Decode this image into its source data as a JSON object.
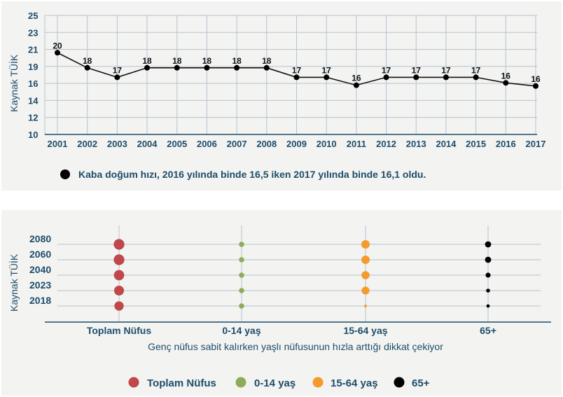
{
  "chart_data": [
    {
      "type": "line",
      "ylabel": "Kaynak TÜİK",
      "y_ticks": [
        "10",
        "12",
        "14",
        "16",
        "19",
        "21",
        "23",
        "25"
      ],
      "x": [
        "2001",
        "2002",
        "2003",
        "2004",
        "2005",
        "2006",
        "2007",
        "2008",
        "2009",
        "2010",
        "2011",
        "2012",
        "2013",
        "2014",
        "2015",
        "2016",
        "2017"
      ],
      "values": [
        20.3,
        18.4,
        17.2,
        18.4,
        18.4,
        18.4,
        18.4,
        18.4,
        17.2,
        17.2,
        16.2,
        17.2,
        17.2,
        17.2,
        17.2,
        16.5,
        16.1
      ],
      "labels": [
        "20",
        "18",
        "17",
        "18",
        "18",
        "18",
        "18",
        "18",
        "17",
        "17",
        "16",
        "17",
        "17",
        "17",
        "17",
        "16",
        "16"
      ],
      "annotation": "Kaba doğum hızı, 2016 yılında binde 16,5 iken 2017 yılında binde 16,1 oldu.",
      "grid": true,
      "colors": {
        "line": "#111111",
        "marker": "#000000",
        "grid": "#b5c3d0",
        "axis": "#1e4d6b"
      }
    },
    {
      "type": "scatter",
      "ylabel": "Kaynak TÜİK",
      "subtitle": "Genç nüfus sabit kalırken yaşlı nüfusunun hızla arttığı dikkat çekiyor",
      "years": [
        "2080",
        "2060",
        "2040",
        "2023",
        "2018"
      ],
      "categories": [
        "Toplam Nüfus",
        "0-14 yaş",
        "15-64 yaş",
        "65+"
      ],
      "series": [
        {
          "name": "Toplam Nüfus",
          "color": "#c0474a",
          "values": [
            0.95,
            0.95,
            0.92,
            0.88,
            0.83
          ]
        },
        {
          "name": "0-14 yaş",
          "color": "#8eab5a",
          "values": [
            0.47,
            0.47,
            0.47,
            0.47,
            0.47
          ]
        },
        {
          "name": "15-64 yaş",
          "color": "#f59a2c",
          "values": [
            0.75,
            0.75,
            0.72,
            0.7,
            0.25
          ]
        },
        {
          "name": "65+",
          "color": "#000000",
          "values": [
            0.55,
            0.55,
            0.45,
            0.35,
            0.3
          ]
        }
      ],
      "legend": [
        "Toplam Nüfus",
        "0-14 yaş",
        "15-64 yaş",
        "65+"
      ],
      "legend_position": "bottom",
      "grid": true
    }
  ]
}
